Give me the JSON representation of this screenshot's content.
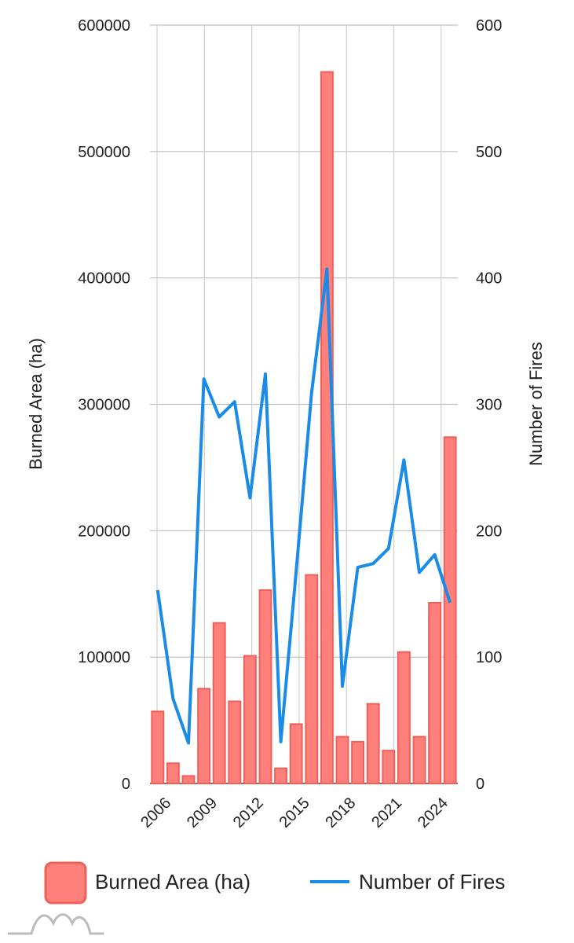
{
  "chart_data": {
    "type": "bar",
    "title": "",
    "xlabel": "",
    "ylabel": "Burned Area (ha)",
    "y2label": "Number of Fires",
    "ylim": [
      0,
      600000
    ],
    "y2lim": [
      0,
      600
    ],
    "yticks": [
      "0",
      "100000",
      "200000",
      "300000",
      "400000",
      "500000",
      "600000"
    ],
    "y2ticks": [
      "0",
      "100",
      "200",
      "300",
      "400",
      "500",
      "600"
    ],
    "xtick_labels": [
      "2006",
      "2009",
      "2012",
      "2015",
      "2018",
      "2021",
      "2024"
    ],
    "grid": true,
    "legend_position": "bottom",
    "categories": [
      "2006",
      "2007",
      "2008",
      "2009",
      "2010",
      "2011",
      "2012",
      "2013",
      "2014",
      "2015",
      "2016",
      "2017",
      "2018",
      "2019",
      "2020",
      "2021",
      "2022",
      "2023",
      "2024",
      "2025"
    ],
    "series": [
      {
        "name": "Burned Area (ha)",
        "type": "bar",
        "axis": "left",
        "color": "#ff7f7a",
        "values": [
          57000,
          16000,
          6000,
          75000,
          127000,
          65000,
          101000,
          153000,
          12000,
          47000,
          165000,
          563000,
          37000,
          33000,
          63000,
          26000,
          104000,
          37000,
          143000,
          274000
        ]
      },
      {
        "name": "Number of Fires",
        "type": "line",
        "axis": "right",
        "color": "#1a8ce8",
        "values": [
          153,
          67,
          32,
          320,
          290,
          302,
          226,
          324,
          33,
          168,
          309,
          407,
          77,
          171,
          174,
          186,
          256,
          167,
          181,
          143
        ]
      }
    ]
  }
}
